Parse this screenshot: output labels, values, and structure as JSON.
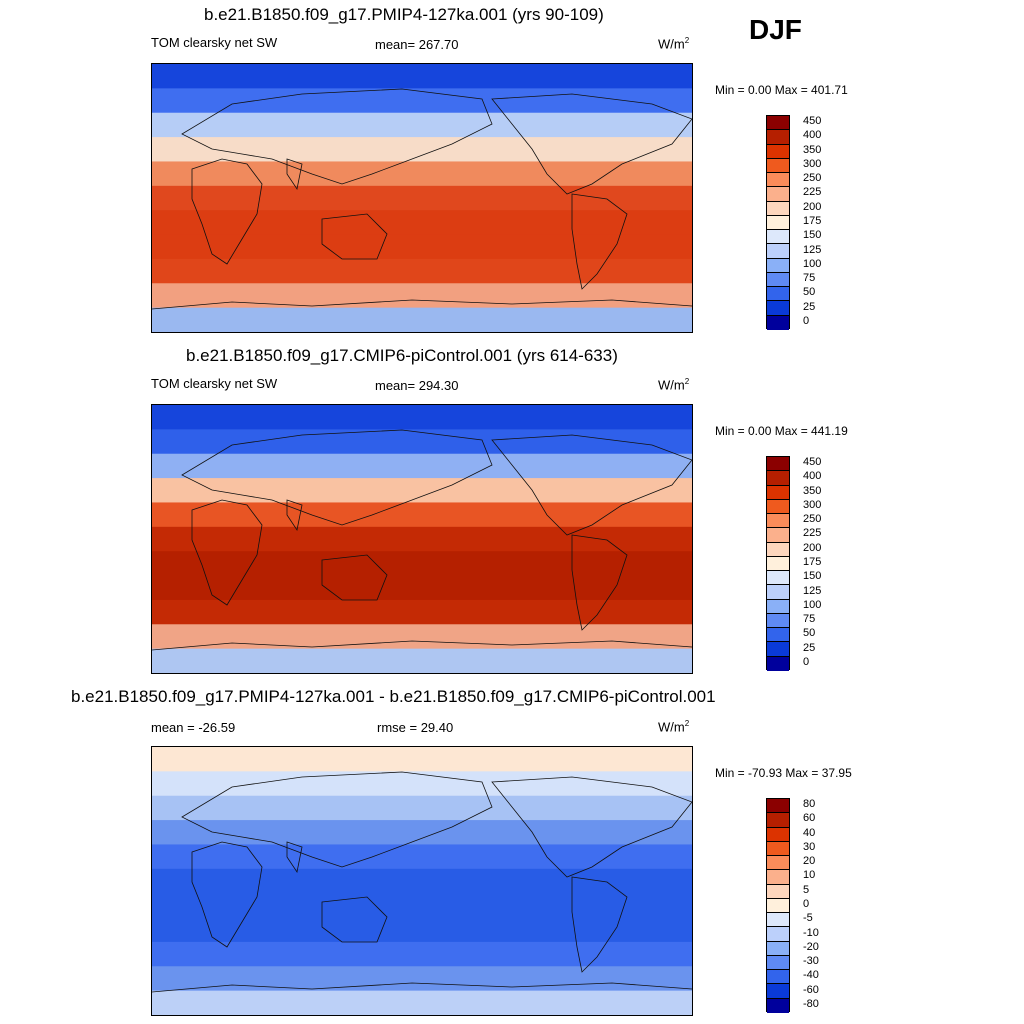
{
  "season": "DJF",
  "panels": [
    {
      "title": "b.e21.B1850.f09_g17.PMIP4-127ka.001 (yrs 90-109)",
      "left_label": "TOM clearsky net SW",
      "center_label": "mean= 267.70",
      "units": "W/m",
      "units_sup": "2",
      "minmax": "Min =   0.00 Max = 401.71",
      "colorbar": {
        "labels": [
          "450",
          "400",
          "350",
          "300",
          "250",
          "225",
          "200",
          "175",
          "150",
          "125",
          "100",
          "75",
          "50",
          "25",
          "0"
        ],
        "colors": [
          "#8b0000",
          "#b51f00",
          "#dc3300",
          "#ef5a1e",
          "#fb8c5a",
          "#fbb08c",
          "#fdd6bd",
          "#fff0dc",
          "#dde8fb",
          "#bcd0fb",
          "#8ab0f7",
          "#5f8af4",
          "#3264ec",
          "#0a3ad8",
          "#00009c"
        ]
      }
    },
    {
      "title": "b.e21.B1850.f09_g17.CMIP6-piControl.001 (yrs 614-633)",
      "left_label": "TOM clearsky net SW",
      "center_label": "mean= 294.30",
      "units": "W/m",
      "units_sup": "2",
      "minmax": "Min =   0.00 Max = 441.19",
      "colorbar": {
        "labels": [
          "450",
          "400",
          "350",
          "300",
          "250",
          "225",
          "200",
          "175",
          "150",
          "125",
          "100",
          "75",
          "50",
          "25",
          "0"
        ],
        "colors": [
          "#8b0000",
          "#b51f00",
          "#dc3300",
          "#ef5a1e",
          "#fb8c5a",
          "#fbb08c",
          "#fdd6bd",
          "#fff0dc",
          "#dde8fb",
          "#bcd0fb",
          "#8ab0f7",
          "#5f8af4",
          "#3264ec",
          "#0a3ad8",
          "#00009c"
        ]
      }
    },
    {
      "title": "b.e21.B1850.f09_g17.PMIP4-127ka.001 - b.e21.B1850.f09_g17.CMIP6-piControl.001",
      "left_label": "mean = -26.59",
      "center_label": "rmse =  29.40",
      "units": "W/m",
      "units_sup": "2",
      "minmax": "Min = -70.93 Max =  37.95",
      "colorbar": {
        "labels": [
          "80",
          "60",
          "40",
          "30",
          "20",
          "10",
          "5",
          "0",
          "-5",
          "-10",
          "-20",
          "-30",
          "-40",
          "-60",
          "-80"
        ],
        "colors": [
          "#8b0000",
          "#b51f00",
          "#dc3300",
          "#ef5a1e",
          "#fb8c5a",
          "#fbb08c",
          "#fdd6bd",
          "#fff0dc",
          "#dde8fb",
          "#bcd0fb",
          "#8ab0f7",
          "#5f8af4",
          "#3264ec",
          "#0a3ad8",
          "#00009c"
        ]
      }
    }
  ],
  "map_fields": [
    {
      "bands": [
        "#1645dc",
        "#3f6ef0",
        "#b6cdf6",
        "#f7dcc8",
        "#f08a5d",
        "#e0481e",
        "#dc3d12",
        "#dc3d12",
        "#e0461a",
        "#f2a080",
        "#9ab8f0"
      ]
    },
    {
      "bands": [
        "#1645dc",
        "#2f60ea",
        "#8fb0f3",
        "#f9c2a2",
        "#e85524",
        "#c42a05",
        "#b52000",
        "#b52000",
        "#c42a05",
        "#f0a486",
        "#aec6f2"
      ]
    },
    {
      "bands": [
        "#fde7d3",
        "#d4e2fa",
        "#a7c2f4",
        "#6a93ee",
        "#3f6ef0",
        "#285ce6",
        "#285ce6",
        "#285ce6",
        "#3f6ef0",
        "#6a93ee",
        "#bcd0f7"
      ]
    }
  ]
}
